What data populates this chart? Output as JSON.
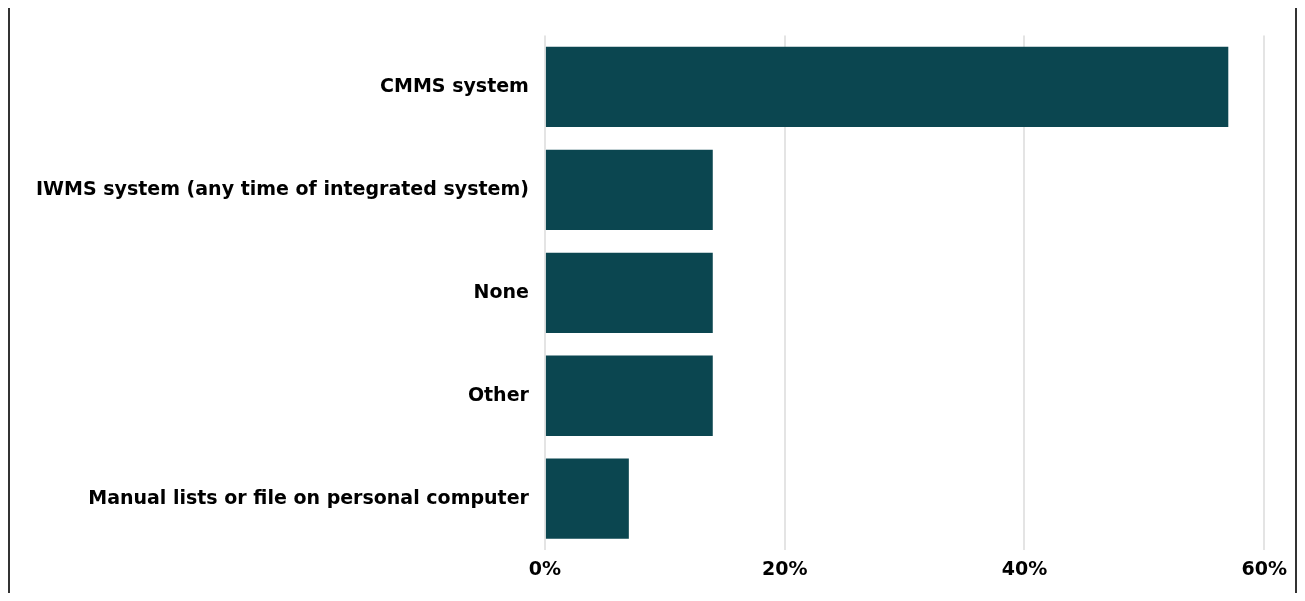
{
  "chart_data": {
    "type": "bar",
    "orientation": "horizontal",
    "categories": [
      "CMMS system",
      "IWMS system (any time of integrated system)",
      "None",
      "Other",
      "Manual lists or file on personal computer"
    ],
    "values": [
      57,
      14,
      14,
      14,
      7
    ],
    "color": "#0b4650",
    "xlim": [
      0,
      60
    ],
    "xticks": [
      {
        "value": 0,
        "label": "0%"
      },
      {
        "value": 20,
        "label": "20%"
      },
      {
        "value": 40,
        "label": "40%"
      },
      {
        "value": 60,
        "label": "60%"
      }
    ],
    "grid": "x",
    "legend": false
  }
}
